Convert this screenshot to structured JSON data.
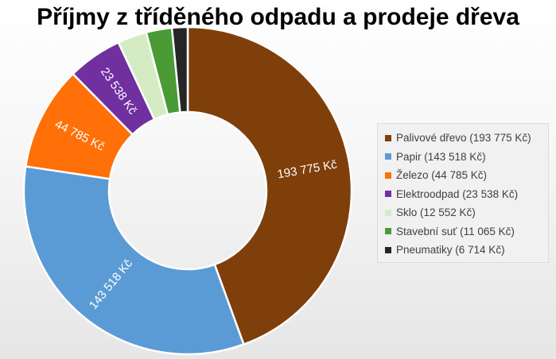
{
  "chart_data": {
    "type": "pie",
    "donut": true,
    "title": "Příjmy z tříděného odpadu a prodeje dřeva",
    "legend_position": "right",
    "currency": "Kč",
    "slices": [
      {
        "name": "Palivové dřevo",
        "value": 193775,
        "label": "193 775 Kč",
        "legend": "Palivové dřevo (193 775 Kč)",
        "color": "#7f3f0b"
      },
      {
        "name": "Papir",
        "value": 143518,
        "label": "143 518 Kč",
        "legend": "Papir (143 518 Kč)",
        "color": "#5b9bd5"
      },
      {
        "name": "Železo",
        "value": 44785,
        "label": "44 785 Kč",
        "legend": "Železo (44 785 Kč)",
        "color": "#ff7008"
      },
      {
        "name": "Elektroodpad",
        "value": 23538,
        "label": "23 538 Kč",
        "legend": "Elektroodpad (23 538 Kč)",
        "color": "#7030a0"
      },
      {
        "name": "Sklo",
        "value": 12552,
        "label": "",
        "legend": "Sklo (12 552 Kč)",
        "color": "#d5ebc4"
      },
      {
        "name": "Stavební suť",
        "value": 11065,
        "label": "",
        "legend": "Stavební suť (11 065 Kč)",
        "color": "#4a9a36"
      },
      {
        "name": "Pneumatiky",
        "value": 6714,
        "label": "",
        "legend": "Pneumatiky (6 714 Kč)",
        "color": "#262626"
      }
    ]
  }
}
